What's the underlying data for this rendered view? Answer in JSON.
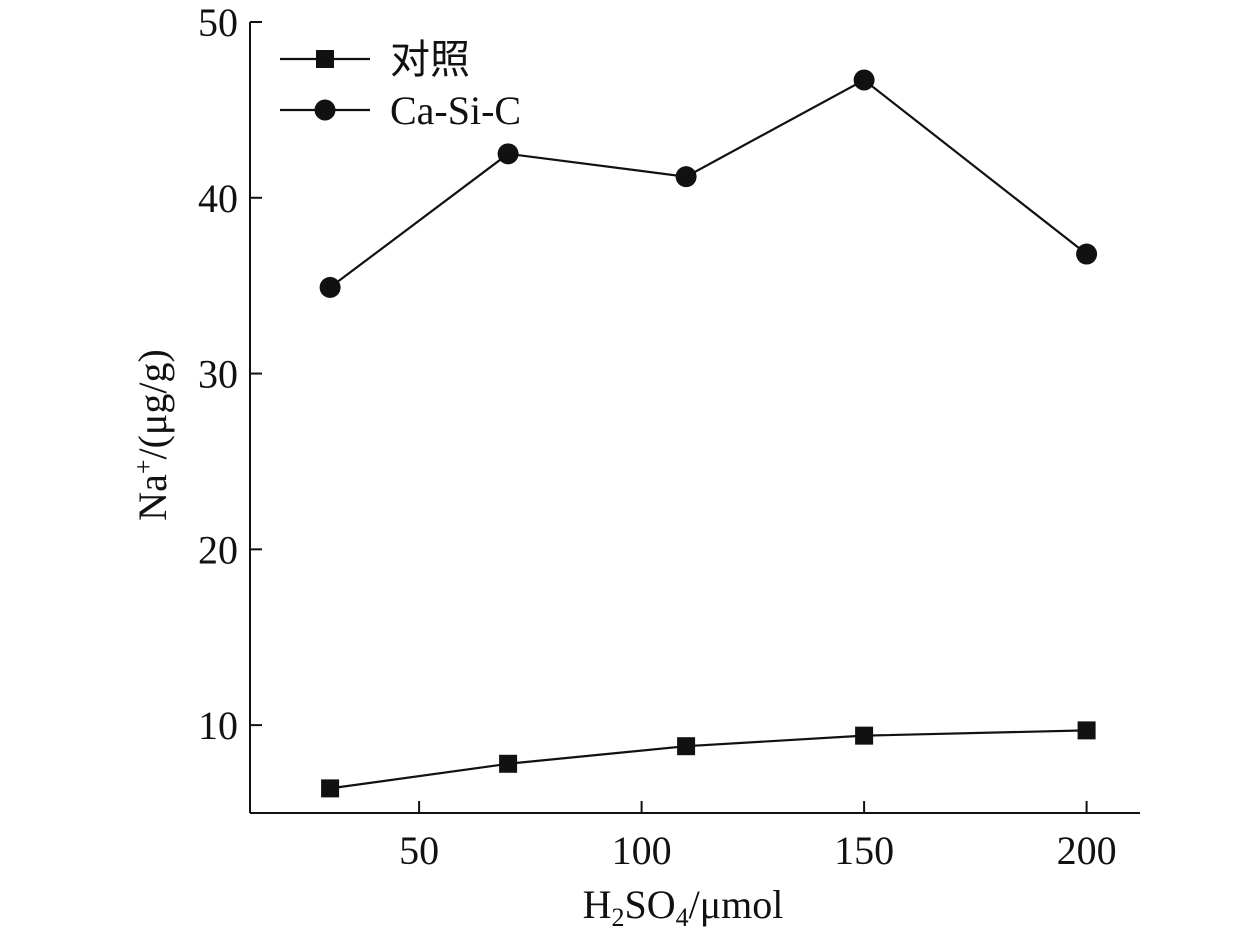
{
  "chart_data": {
    "type": "line",
    "x": [
      30,
      70,
      110,
      150,
      200
    ],
    "xlim": [
      12,
      212
    ],
    "ylim": [
      5,
      50
    ],
    "xticks": [
      50,
      100,
      150,
      200
    ],
    "yticks": [
      10,
      20,
      30,
      40,
      50
    ],
    "xlabel": {
      "base": "H",
      "sub1": "2",
      "mid": "SO",
      "sub2": "4",
      "tail": "/μmol"
    },
    "ylabel": {
      "base": "Na",
      "sup": "+",
      "tail": "/(μg/g)"
    },
    "grid": false,
    "legend_position": "top-left",
    "series": [
      {
        "name": "对照",
        "marker": "square",
        "color": "#111111",
        "values": [
          6.4,
          7.8,
          8.8,
          9.4,
          9.7
        ]
      },
      {
        "name": "Ca-Si-C",
        "marker": "circle",
        "color": "#111111",
        "values": [
          34.9,
          42.5,
          41.2,
          46.7,
          36.8
        ]
      }
    ]
  }
}
